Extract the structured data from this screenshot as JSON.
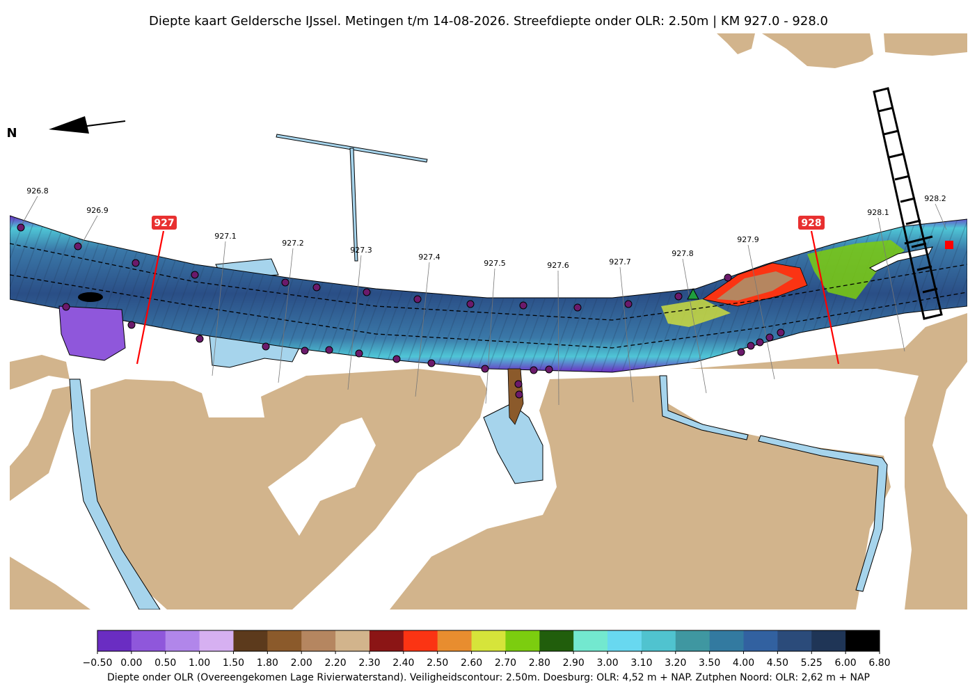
{
  "title": "Diepte kaart Geldersche IJssel. Metingen t/m 14-08-2026. Streefdiepte onder OLR: 2.50m | KM 927.0 - 928.0",
  "north_label": "N",
  "km_labels": [
    "926.8",
    "926.9",
    "927.1",
    "927.2",
    "927.3",
    "927.4",
    "927.5",
    "927.6",
    "927.7",
    "927.8",
    "927.9",
    "928.1",
    "928.2"
  ],
  "km_major": [
    "927",
    "928"
  ],
  "colorbar": {
    "ticks": [
      "−0.50",
      "0.00",
      "0.50",
      "1.00",
      "1.50",
      "1.80",
      "2.00",
      "2.20",
      "2.30",
      "2.40",
      "2.50",
      "2.60",
      "2.70",
      "2.80",
      "2.90",
      "3.00",
      "3.10",
      "3.20",
      "3.50",
      "4.00",
      "4.50",
      "5.25",
      "6.00",
      "6.80"
    ],
    "colors": [
      "#6a2dc2",
      "#8f57db",
      "#b186ea",
      "#d6b0f1",
      "#5c3a1c",
      "#8b5a2b",
      "#b58660",
      "#d2b48c",
      "#8b1515",
      "#fb3413",
      "#e88d2f",
      "#d6e43a",
      "#7ccd0f",
      "#215e0c",
      "#73e8cf",
      "#68d8f0",
      "#50c3cf",
      "#3f97a1",
      "#337aa0",
      "#3261a0",
      "#2b4b7a",
      "#1f3556",
      "#000000"
    ],
    "caption": "Diepte onder OLR (Overeengekomen Lage Rivierwaterstand). Veiligheidscontour: 2.50m. Doesburg: OLR: 4,52 m + NAP. Zutphen Noord: OLR: 2,62 m + NAP"
  },
  "colors": {
    "land": "#d2b48c",
    "water": "#a6d4ec",
    "deep": "#2f5591",
    "km_marker": "#e83030",
    "buoy": "#6b1a6b"
  }
}
